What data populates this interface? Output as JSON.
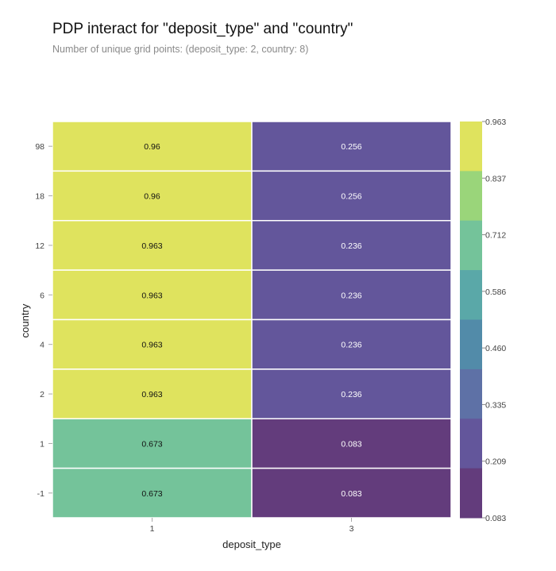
{
  "chart_data": {
    "type": "heatmap",
    "title": "PDP interact for \"deposit_type\" and \"country\"",
    "subtitle": "Number of unique grid points: (deposit_type: 2, country: 8)",
    "xlabel": "deposit_type",
    "ylabel": "country",
    "x_categories": [
      "1",
      "3"
    ],
    "y_categories": [
      "98",
      "18",
      "12",
      "6",
      "4",
      "2",
      "1",
      "-1"
    ],
    "values": [
      [
        0.96,
        0.256
      ],
      [
        0.96,
        0.256
      ],
      [
        0.963,
        0.236
      ],
      [
        0.963,
        0.236
      ],
      [
        0.963,
        0.236
      ],
      [
        0.963,
        0.236
      ],
      [
        0.673,
        0.083
      ],
      [
        0.673,
        0.083
      ]
    ],
    "cell_labels": [
      [
        "0.96",
        "0.256"
      ],
      [
        "0.96",
        "0.256"
      ],
      [
        "0.963",
        "0.236"
      ],
      [
        "0.963",
        "0.236"
      ],
      [
        "0.963",
        "0.236"
      ],
      [
        "0.963",
        "0.236"
      ],
      [
        "0.673",
        "0.083"
      ],
      [
        "0.673",
        "0.083"
      ]
    ],
    "colorbar": {
      "ticks": [
        "0.963",
        "0.837",
        "0.712",
        "0.586",
        "0.460",
        "0.335",
        "0.209",
        "0.083"
      ],
      "range": [
        0.083,
        0.963
      ],
      "colors": [
        "#dfe35e",
        "#9ad57a",
        "#74c39a",
        "#5aa8a8",
        "#528ba9",
        "#5e71a6",
        "#63569b",
        "#633c7c"
      ]
    },
    "colormap": "viridis"
  }
}
